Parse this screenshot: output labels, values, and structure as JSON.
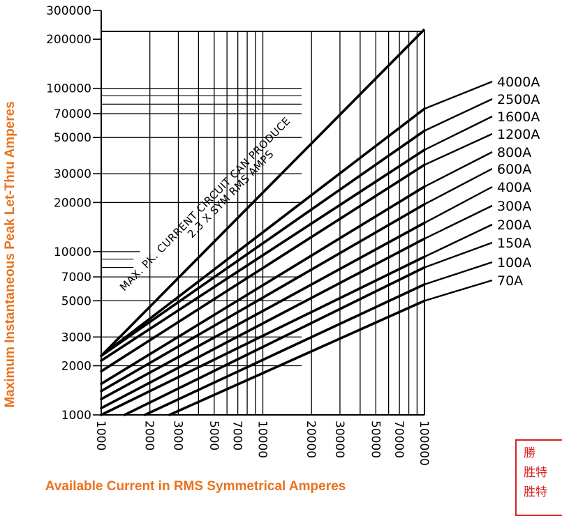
{
  "chart_data": {
    "type": "line",
    "title": "",
    "xlabel": "Available Current in RMS Symmetrical Amperes",
    "ylabel": "Maximum Instantaneous Peak Let-Thru Amperes",
    "xscale": "log",
    "yscale": "log",
    "xlim": [
      1000,
      100000
    ],
    "ylim": [
      1000,
      300000
    ],
    "x_ticks": [
      "1000",
      "2000",
      "3000",
      "5000",
      "7000",
      "10000",
      "20000",
      "30000",
      "50000",
      "70000",
      "100000"
    ],
    "x_tick_values": [
      1000,
      2000,
      3000,
      5000,
      7000,
      10000,
      20000,
      30000,
      50000,
      70000,
      100000
    ],
    "y_ticks": [
      "1000",
      "2000",
      "3000",
      "5000",
      "7000",
      "10000",
      "20000",
      "30000",
      "50000",
      "70000",
      "100000",
      "200000",
      "300000"
    ],
    "y_tick_values": [
      1000,
      2000,
      3000,
      5000,
      7000,
      10000,
      20000,
      30000,
      50000,
      70000,
      100000,
      200000,
      300000
    ],
    "grid": true,
    "annotation": {
      "line1": "MAX. PK. CURRENT CIRCUIT CAN PRODUCE",
      "line2": "2.3 X SYM RMS AMPS"
    },
    "reference_line": {
      "name": "MAX. PK. CURRENT",
      "x": [
        1000,
        100000
      ],
      "y": [
        2300,
        230000
      ]
    },
    "series": [
      {
        "name": "4000A",
        "x": [
          1000,
          100000
        ],
        "y": [
          2300,
          75000
        ]
      },
      {
        "name": "2500A",
        "x": [
          1000,
          100000
        ],
        "y": [
          2300,
          55000
        ]
      },
      {
        "name": "1600A",
        "x": [
          1000,
          100000
        ],
        "y": [
          2150,
          42000
        ]
      },
      {
        "name": "1200A",
        "x": [
          1000,
          100000
        ],
        "y": [
          1850,
          34000
        ]
      },
      {
        "name": "800A",
        "x": [
          1000,
          100000
        ],
        "y": [
          1550,
          25000
        ]
      },
      {
        "name": "600A",
        "x": [
          1000,
          100000
        ],
        "y": [
          1400,
          19500
        ]
      },
      {
        "name": "400A",
        "x": [
          1000,
          100000
        ],
        "y": [
          1250,
          15000
        ]
      },
      {
        "name": "300A",
        "x": [
          1000,
          100000
        ],
        "y": [
          1100,
          12000
        ]
      },
      {
        "name": "200A",
        "x": [
          1000,
          100000
        ],
        "y": [
          1000,
          9300
        ]
      },
      {
        "name": "150A",
        "x": [
          1000,
          100000
        ],
        "y": [
          850,
          8000
        ]
      },
      {
        "name": "100A",
        "x": [
          1000,
          100000
        ],
        "y": [
          750,
          6300
        ]
      },
      {
        "name": "70A",
        "x": [
          1000,
          100000
        ],
        "y": [
          650,
          5000
        ]
      }
    ]
  },
  "stamp": {
    "line1": "勝",
    "line2": "胜特",
    "line3": "胜特"
  },
  "colors": {
    "axis_label": "#e8731f",
    "stamp": "#d62020",
    "ink": "#000000"
  }
}
